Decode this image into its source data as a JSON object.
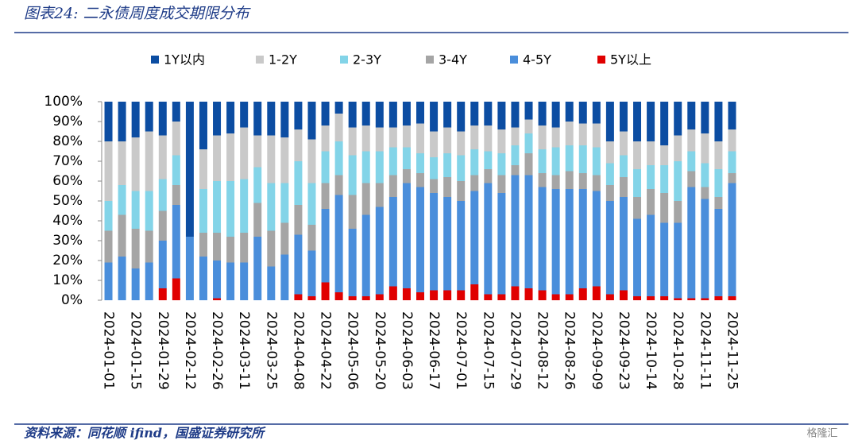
{
  "chart_data": {
    "type": "stacked_bar_percent",
    "title": "图表24: 二永债周度成交期限分布",
    "source": "资料来源：同花顺 ifind，国盛证券研究所",
    "watermark": "格隆汇",
    "categories": [
      "2024-01-01",
      null,
      "2024-01-15",
      null,
      "2024-01-29",
      null,
      "2024-02-12",
      null,
      "2024-02-26",
      null,
      "2024-03-11",
      null,
      "2024-03-25",
      null,
      "2024-04-08",
      null,
      "2024-04-22",
      null,
      "2024-05-06",
      null,
      "2024-05-20",
      null,
      "2024-06-03",
      null,
      "2024-06-17",
      null,
      "2024-07-01",
      null,
      "2024-07-15",
      null,
      "2024-07-29",
      null,
      "2024-08-12",
      null,
      "2024-08-26",
      null,
      "2024-09-09",
      null,
      "2024-09-23",
      null,
      "2024-10-14",
      null,
      "2024-10-28",
      null,
      "2024-11-11",
      null,
      "2024-11-25"
    ],
    "series": [
      {
        "name": "1Y以内",
        "color": "#0c4da2",
        "values": [
          20,
          20,
          18,
          15,
          17,
          10,
          68,
          24,
          17,
          16,
          13,
          17,
          17,
          18,
          14,
          19,
          12,
          6,
          13,
          12,
          13,
          13,
          12,
          11,
          15,
          13,
          15,
          12,
          12,
          14,
          13,
          9,
          12,
          13,
          10,
          11,
          11,
          20,
          15,
          20,
          20,
          22,
          17,
          14,
          16,
          20,
          14
        ]
      },
      {
        "name": "1-2Y",
        "color": "#c9c9c9",
        "values": [
          30,
          22,
          27,
          30,
          22,
          17,
          0,
          20,
          23,
          24,
          26,
          16,
          24,
          23,
          16,
          22,
          13,
          14,
          14,
          13,
          12,
          10,
          11,
          15,
          13,
          13,
          12,
          12,
          13,
          12,
          9,
          7,
          12,
          10,
          12,
          11,
          12,
          11,
          12,
          14,
          12,
          10,
          13,
          11,
          15,
          14,
          11
        ]
      },
      {
        "name": "2-3Y",
        "color": "#83d4e8",
        "values": [
          15,
          15,
          19,
          20,
          16,
          15,
          0,
          22,
          26,
          28,
          27,
          18,
          24,
          20,
          22,
          21,
          16,
          17,
          20,
          16,
          16,
          14,
          11,
          10,
          11,
          12,
          13,
          13,
          9,
          11,
          10,
          10,
          12,
          14,
          13,
          14,
          14,
          11,
          11,
          14,
          12,
          14,
          20,
          10,
          12,
          14,
          11
        ]
      },
      {
        "name": "3-4Y",
        "color": "#a5a5a5",
        "values": [
          16,
          21,
          20,
          16,
          15,
          10,
          0,
          12,
          14,
          13,
          15,
          17,
          18,
          16,
          15,
          13,
          13,
          10,
          17,
          16,
          12,
          11,
          7,
          7,
          7,
          10,
          10,
          8,
          7,
          9,
          5,
          11,
          7,
          7,
          9,
          8,
          8,
          8,
          10,
          11,
          13,
          15,
          11,
          8,
          6,
          6,
          5
        ]
      },
      {
        "name": "4-5Y",
        "color": "#4a8edb",
        "values": [
          19,
          22,
          16,
          19,
          24,
          37,
          32,
          22,
          19,
          19,
          19,
          32,
          17,
          23,
          30,
          23,
          37,
          49,
          34,
          41,
          44,
          45,
          53,
          53,
          49,
          47,
          45,
          47,
          56,
          51,
          56,
          57,
          52,
          53,
          53,
          50,
          48,
          47,
          47,
          39,
          41,
          37,
          38,
          56,
          50,
          44,
          57
        ]
      },
      {
        "name": "5Y以上",
        "color": "#e00000",
        "values": [
          0,
          0,
          0,
          0,
          6,
          11,
          0,
          0,
          1,
          0,
          0,
          0,
          0,
          0,
          3,
          2,
          9,
          4,
          2,
          2,
          3,
          7,
          6,
          4,
          5,
          5,
          5,
          8,
          3,
          3,
          7,
          6,
          5,
          3,
          3,
          6,
          7,
          3,
          5,
          2,
          2,
          2,
          1,
          1,
          1,
          2,
          2
        ]
      }
    ],
    "ylim": [
      0,
      100
    ],
    "yticks": [
      {
        "value": 0,
        "label": "0%"
      },
      {
        "value": 10,
        "label": "10%"
      },
      {
        "value": 20,
        "label": "20%"
      },
      {
        "value": 30,
        "label": "30%"
      },
      {
        "value": 40,
        "label": "40%"
      },
      {
        "value": 50,
        "label": "50%"
      },
      {
        "value": 60,
        "label": "60%"
      },
      {
        "value": 70,
        "label": "70%"
      },
      {
        "value": 80,
        "label": "80%"
      },
      {
        "value": 90,
        "label": "90%"
      },
      {
        "value": 100,
        "label": "100%"
      }
    ]
  }
}
